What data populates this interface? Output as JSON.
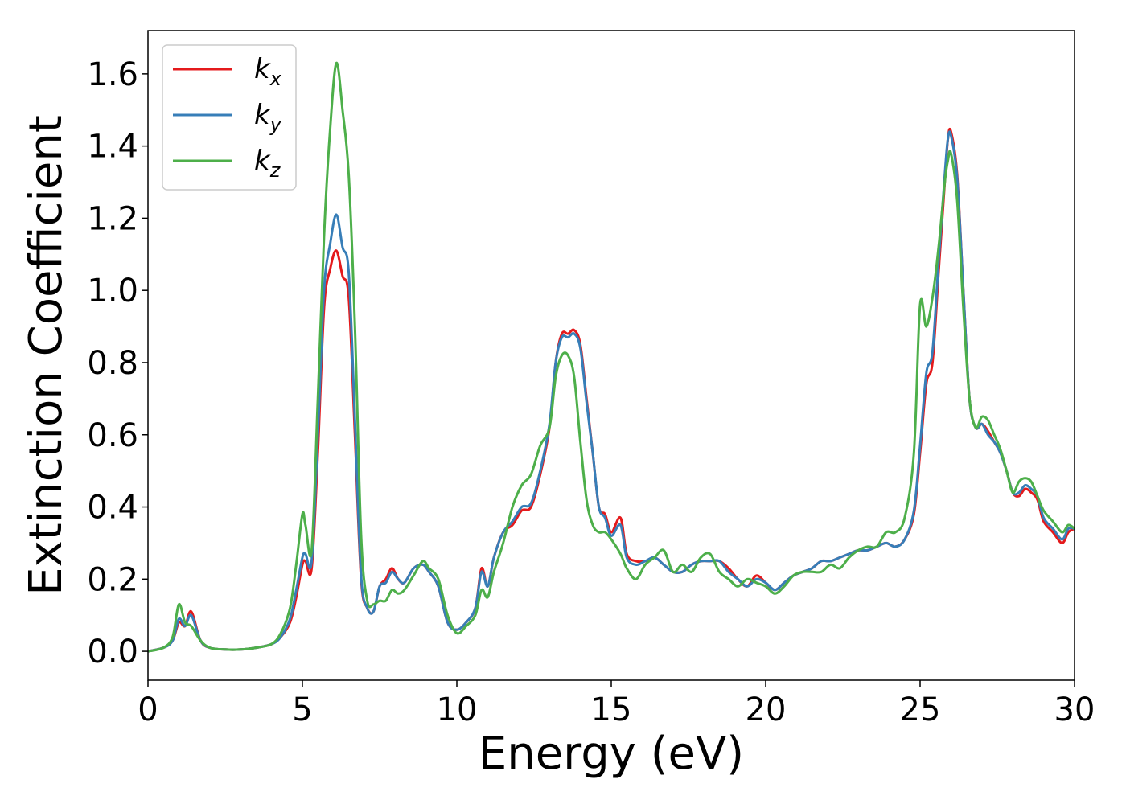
{
  "chart_data": {
    "type": "line",
    "xlabel": "Energy (eV)",
    "ylabel": "Extinction Coefficient",
    "xlim": [
      0,
      30
    ],
    "ylim": [
      -0.08,
      1.72
    ],
    "xticks": [
      0,
      5,
      10,
      15,
      20,
      25,
      30
    ],
    "xtick_labels": [
      "0",
      "5",
      "10",
      "15",
      "20",
      "25",
      "30"
    ],
    "yticks": [
      0.0,
      0.2,
      0.4,
      0.6,
      0.8,
      1.0,
      1.2,
      1.4,
      1.6
    ],
    "ytick_labels": [
      "0.0",
      "0.2",
      "0.4",
      "0.6",
      "0.8",
      "1.0",
      "1.2",
      "1.4",
      "1.6"
    ],
    "grid": false,
    "legend_position": "top-left",
    "series": [
      {
        "name": "k_x",
        "label_base": "k",
        "label_sub": "x",
        "color": "#e41a1c",
        "x": [
          0,
          0.5,
          0.8,
          1.0,
          1.2,
          1.4,
          1.7,
          2.0,
          2.5,
          3.0,
          3.5,
          4.0,
          4.3,
          4.6,
          4.8,
          5.0,
          5.1,
          5.3,
          5.5,
          5.7,
          5.9,
          6.1,
          6.3,
          6.5,
          6.7,
          6.9,
          7.1,
          7.3,
          7.5,
          7.7,
          7.9,
          8.1,
          8.3,
          8.6,
          8.9,
          9.1,
          9.4,
          9.7,
          10.0,
          10.3,
          10.6,
          10.8,
          11.0,
          11.2,
          11.5,
          11.8,
          12.1,
          12.4,
          12.7,
          13.0,
          13.2,
          13.4,
          13.6,
          13.8,
          14.0,
          14.2,
          14.4,
          14.6,
          14.8,
          15.0,
          15.3,
          15.5,
          15.8,
          16.1,
          16.4,
          16.7,
          17.0,
          17.3,
          17.6,
          17.9,
          18.2,
          18.5,
          18.8,
          19.1,
          19.4,
          19.7,
          20.0,
          20.3,
          20.6,
          20.9,
          21.2,
          21.5,
          21.8,
          22.1,
          22.4,
          22.7,
          23.0,
          23.3,
          23.6,
          23.9,
          24.2,
          24.5,
          24.8,
          25.0,
          25.2,
          25.4,
          25.6,
          25.8,
          25.9,
          26.0,
          26.2,
          26.4,
          26.6,
          26.8,
          27.0,
          27.2,
          27.4,
          27.6,
          27.8,
          28.0,
          28.2,
          28.4,
          28.6,
          28.8,
          29.0,
          29.3,
          29.6,
          29.8,
          30.0
        ],
        "y": [
          0.0,
          0.01,
          0.03,
          0.08,
          0.07,
          0.11,
          0.03,
          0.01,
          0.005,
          0.005,
          0.01,
          0.02,
          0.04,
          0.08,
          0.15,
          0.24,
          0.25,
          0.23,
          0.55,
          0.95,
          1.06,
          1.11,
          1.04,
          0.98,
          0.6,
          0.2,
          0.12,
          0.11,
          0.18,
          0.2,
          0.23,
          0.2,
          0.19,
          0.23,
          0.24,
          0.22,
          0.18,
          0.08,
          0.06,
          0.08,
          0.12,
          0.23,
          0.18,
          0.26,
          0.33,
          0.35,
          0.39,
          0.4,
          0.49,
          0.62,
          0.8,
          0.88,
          0.88,
          0.89,
          0.85,
          0.7,
          0.55,
          0.4,
          0.38,
          0.33,
          0.37,
          0.27,
          0.25,
          0.25,
          0.26,
          0.24,
          0.22,
          0.22,
          0.24,
          0.25,
          0.25,
          0.25,
          0.23,
          0.2,
          0.18,
          0.21,
          0.19,
          0.17,
          0.19,
          0.21,
          0.22,
          0.23,
          0.25,
          0.25,
          0.26,
          0.27,
          0.28,
          0.28,
          0.29,
          0.3,
          0.29,
          0.31,
          0.38,
          0.55,
          0.74,
          0.8,
          1.05,
          1.3,
          1.42,
          1.44,
          1.32,
          1.0,
          0.7,
          0.62,
          0.63,
          0.61,
          0.58,
          0.55,
          0.5,
          0.44,
          0.43,
          0.45,
          0.44,
          0.42,
          0.36,
          0.33,
          0.3,
          0.33,
          0.34
        ]
      },
      {
        "name": "k_y",
        "label_base": "k",
        "label_sub": "y",
        "color": "#377eb8",
        "x": [
          0,
          0.5,
          0.8,
          1.0,
          1.2,
          1.4,
          1.7,
          2.0,
          2.5,
          3.0,
          3.5,
          4.0,
          4.3,
          4.6,
          4.8,
          5.0,
          5.1,
          5.3,
          5.5,
          5.7,
          5.9,
          6.1,
          6.3,
          6.5,
          6.7,
          6.9,
          7.1,
          7.3,
          7.5,
          7.7,
          7.9,
          8.1,
          8.3,
          8.6,
          8.9,
          9.1,
          9.4,
          9.7,
          10.0,
          10.3,
          10.6,
          10.8,
          11.0,
          11.2,
          11.5,
          11.8,
          12.1,
          12.4,
          12.7,
          13.0,
          13.2,
          13.4,
          13.6,
          13.8,
          14.0,
          14.2,
          14.4,
          14.6,
          14.8,
          15.0,
          15.3,
          15.5,
          15.8,
          16.1,
          16.4,
          16.7,
          17.0,
          17.3,
          17.6,
          17.9,
          18.2,
          18.5,
          18.8,
          19.1,
          19.4,
          19.7,
          20.0,
          20.3,
          20.6,
          20.9,
          21.2,
          21.5,
          21.8,
          22.1,
          22.4,
          22.7,
          23.0,
          23.3,
          23.6,
          23.9,
          24.2,
          24.5,
          24.8,
          25.0,
          25.2,
          25.4,
          25.6,
          25.8,
          25.9,
          26.0,
          26.2,
          26.4,
          26.6,
          26.8,
          27.0,
          27.2,
          27.4,
          27.6,
          27.8,
          28.0,
          28.2,
          28.4,
          28.6,
          28.8,
          29.0,
          29.3,
          29.6,
          29.8,
          30.0
        ],
        "y": [
          0.0,
          0.01,
          0.03,
          0.09,
          0.07,
          0.1,
          0.03,
          0.01,
          0.005,
          0.005,
          0.01,
          0.02,
          0.04,
          0.09,
          0.17,
          0.26,
          0.27,
          0.25,
          0.6,
          1.0,
          1.13,
          1.21,
          1.12,
          1.05,
          0.64,
          0.21,
          0.12,
          0.11,
          0.18,
          0.19,
          0.22,
          0.2,
          0.19,
          0.23,
          0.24,
          0.22,
          0.18,
          0.08,
          0.06,
          0.08,
          0.12,
          0.22,
          0.18,
          0.26,
          0.33,
          0.36,
          0.4,
          0.41,
          0.5,
          0.63,
          0.8,
          0.87,
          0.87,
          0.88,
          0.84,
          0.69,
          0.55,
          0.4,
          0.37,
          0.32,
          0.35,
          0.26,
          0.24,
          0.25,
          0.26,
          0.24,
          0.22,
          0.22,
          0.24,
          0.25,
          0.25,
          0.25,
          0.22,
          0.2,
          0.18,
          0.2,
          0.19,
          0.17,
          0.19,
          0.21,
          0.22,
          0.23,
          0.25,
          0.25,
          0.26,
          0.27,
          0.28,
          0.28,
          0.29,
          0.3,
          0.29,
          0.31,
          0.39,
          0.57,
          0.77,
          0.83,
          1.08,
          1.32,
          1.42,
          1.43,
          1.31,
          1.0,
          0.7,
          0.62,
          0.63,
          0.6,
          0.58,
          0.55,
          0.5,
          0.44,
          0.44,
          0.46,
          0.45,
          0.43,
          0.37,
          0.34,
          0.31,
          0.34,
          0.34
        ]
      },
      {
        "name": "k_z",
        "label_base": "k",
        "label_sub": "z",
        "color": "#4daf4a",
        "x": [
          0,
          0.5,
          0.8,
          1.0,
          1.2,
          1.4,
          1.7,
          2.0,
          2.5,
          3.0,
          3.5,
          4.0,
          4.3,
          4.6,
          4.8,
          5.0,
          5.1,
          5.3,
          5.5,
          5.7,
          5.9,
          6.1,
          6.3,
          6.5,
          6.7,
          6.9,
          7.1,
          7.3,
          7.5,
          7.7,
          7.9,
          8.1,
          8.3,
          8.6,
          8.9,
          9.1,
          9.4,
          9.7,
          10.0,
          10.3,
          10.6,
          10.8,
          11.0,
          11.2,
          11.5,
          11.8,
          12.1,
          12.4,
          12.7,
          13.0,
          13.2,
          13.4,
          13.6,
          13.8,
          14.0,
          14.2,
          14.4,
          14.6,
          14.8,
          15.0,
          15.3,
          15.5,
          15.8,
          16.1,
          16.4,
          16.7,
          17.0,
          17.3,
          17.6,
          17.9,
          18.2,
          18.5,
          18.8,
          19.1,
          19.4,
          19.7,
          20.0,
          20.3,
          20.6,
          20.9,
          21.2,
          21.5,
          21.8,
          22.1,
          22.4,
          22.7,
          23.0,
          23.3,
          23.6,
          23.9,
          24.2,
          24.5,
          24.8,
          25.0,
          25.2,
          25.4,
          25.6,
          25.8,
          25.9,
          26.0,
          26.2,
          26.4,
          26.6,
          26.8,
          27.0,
          27.2,
          27.4,
          27.6,
          27.8,
          28.0,
          28.2,
          28.4,
          28.6,
          28.8,
          29.0,
          29.3,
          29.6,
          29.8,
          30.0
        ],
        "y": [
          0.0,
          0.01,
          0.04,
          0.13,
          0.08,
          0.07,
          0.03,
          0.01,
          0.005,
          0.005,
          0.01,
          0.02,
          0.05,
          0.12,
          0.24,
          0.38,
          0.35,
          0.28,
          0.7,
          1.15,
          1.45,
          1.63,
          1.5,
          1.32,
          0.9,
          0.32,
          0.14,
          0.13,
          0.14,
          0.14,
          0.17,
          0.16,
          0.17,
          0.21,
          0.25,
          0.23,
          0.2,
          0.1,
          0.05,
          0.07,
          0.1,
          0.17,
          0.15,
          0.22,
          0.3,
          0.4,
          0.46,
          0.49,
          0.57,
          0.62,
          0.76,
          0.82,
          0.82,
          0.76,
          0.58,
          0.42,
          0.35,
          0.33,
          0.33,
          0.31,
          0.27,
          0.23,
          0.2,
          0.24,
          0.26,
          0.28,
          0.22,
          0.24,
          0.22,
          0.26,
          0.27,
          0.22,
          0.2,
          0.18,
          0.2,
          0.19,
          0.18,
          0.16,
          0.18,
          0.21,
          0.22,
          0.22,
          0.22,
          0.24,
          0.23,
          0.26,
          0.28,
          0.29,
          0.29,
          0.33,
          0.33,
          0.37,
          0.55,
          0.96,
          0.9,
          0.98,
          1.12,
          1.3,
          1.36,
          1.38,
          1.25,
          0.95,
          0.7,
          0.62,
          0.65,
          0.64,
          0.6,
          0.56,
          0.5,
          0.44,
          0.47,
          0.48,
          0.47,
          0.43,
          0.39,
          0.36,
          0.33,
          0.35,
          0.34
        ]
      }
    ]
  }
}
